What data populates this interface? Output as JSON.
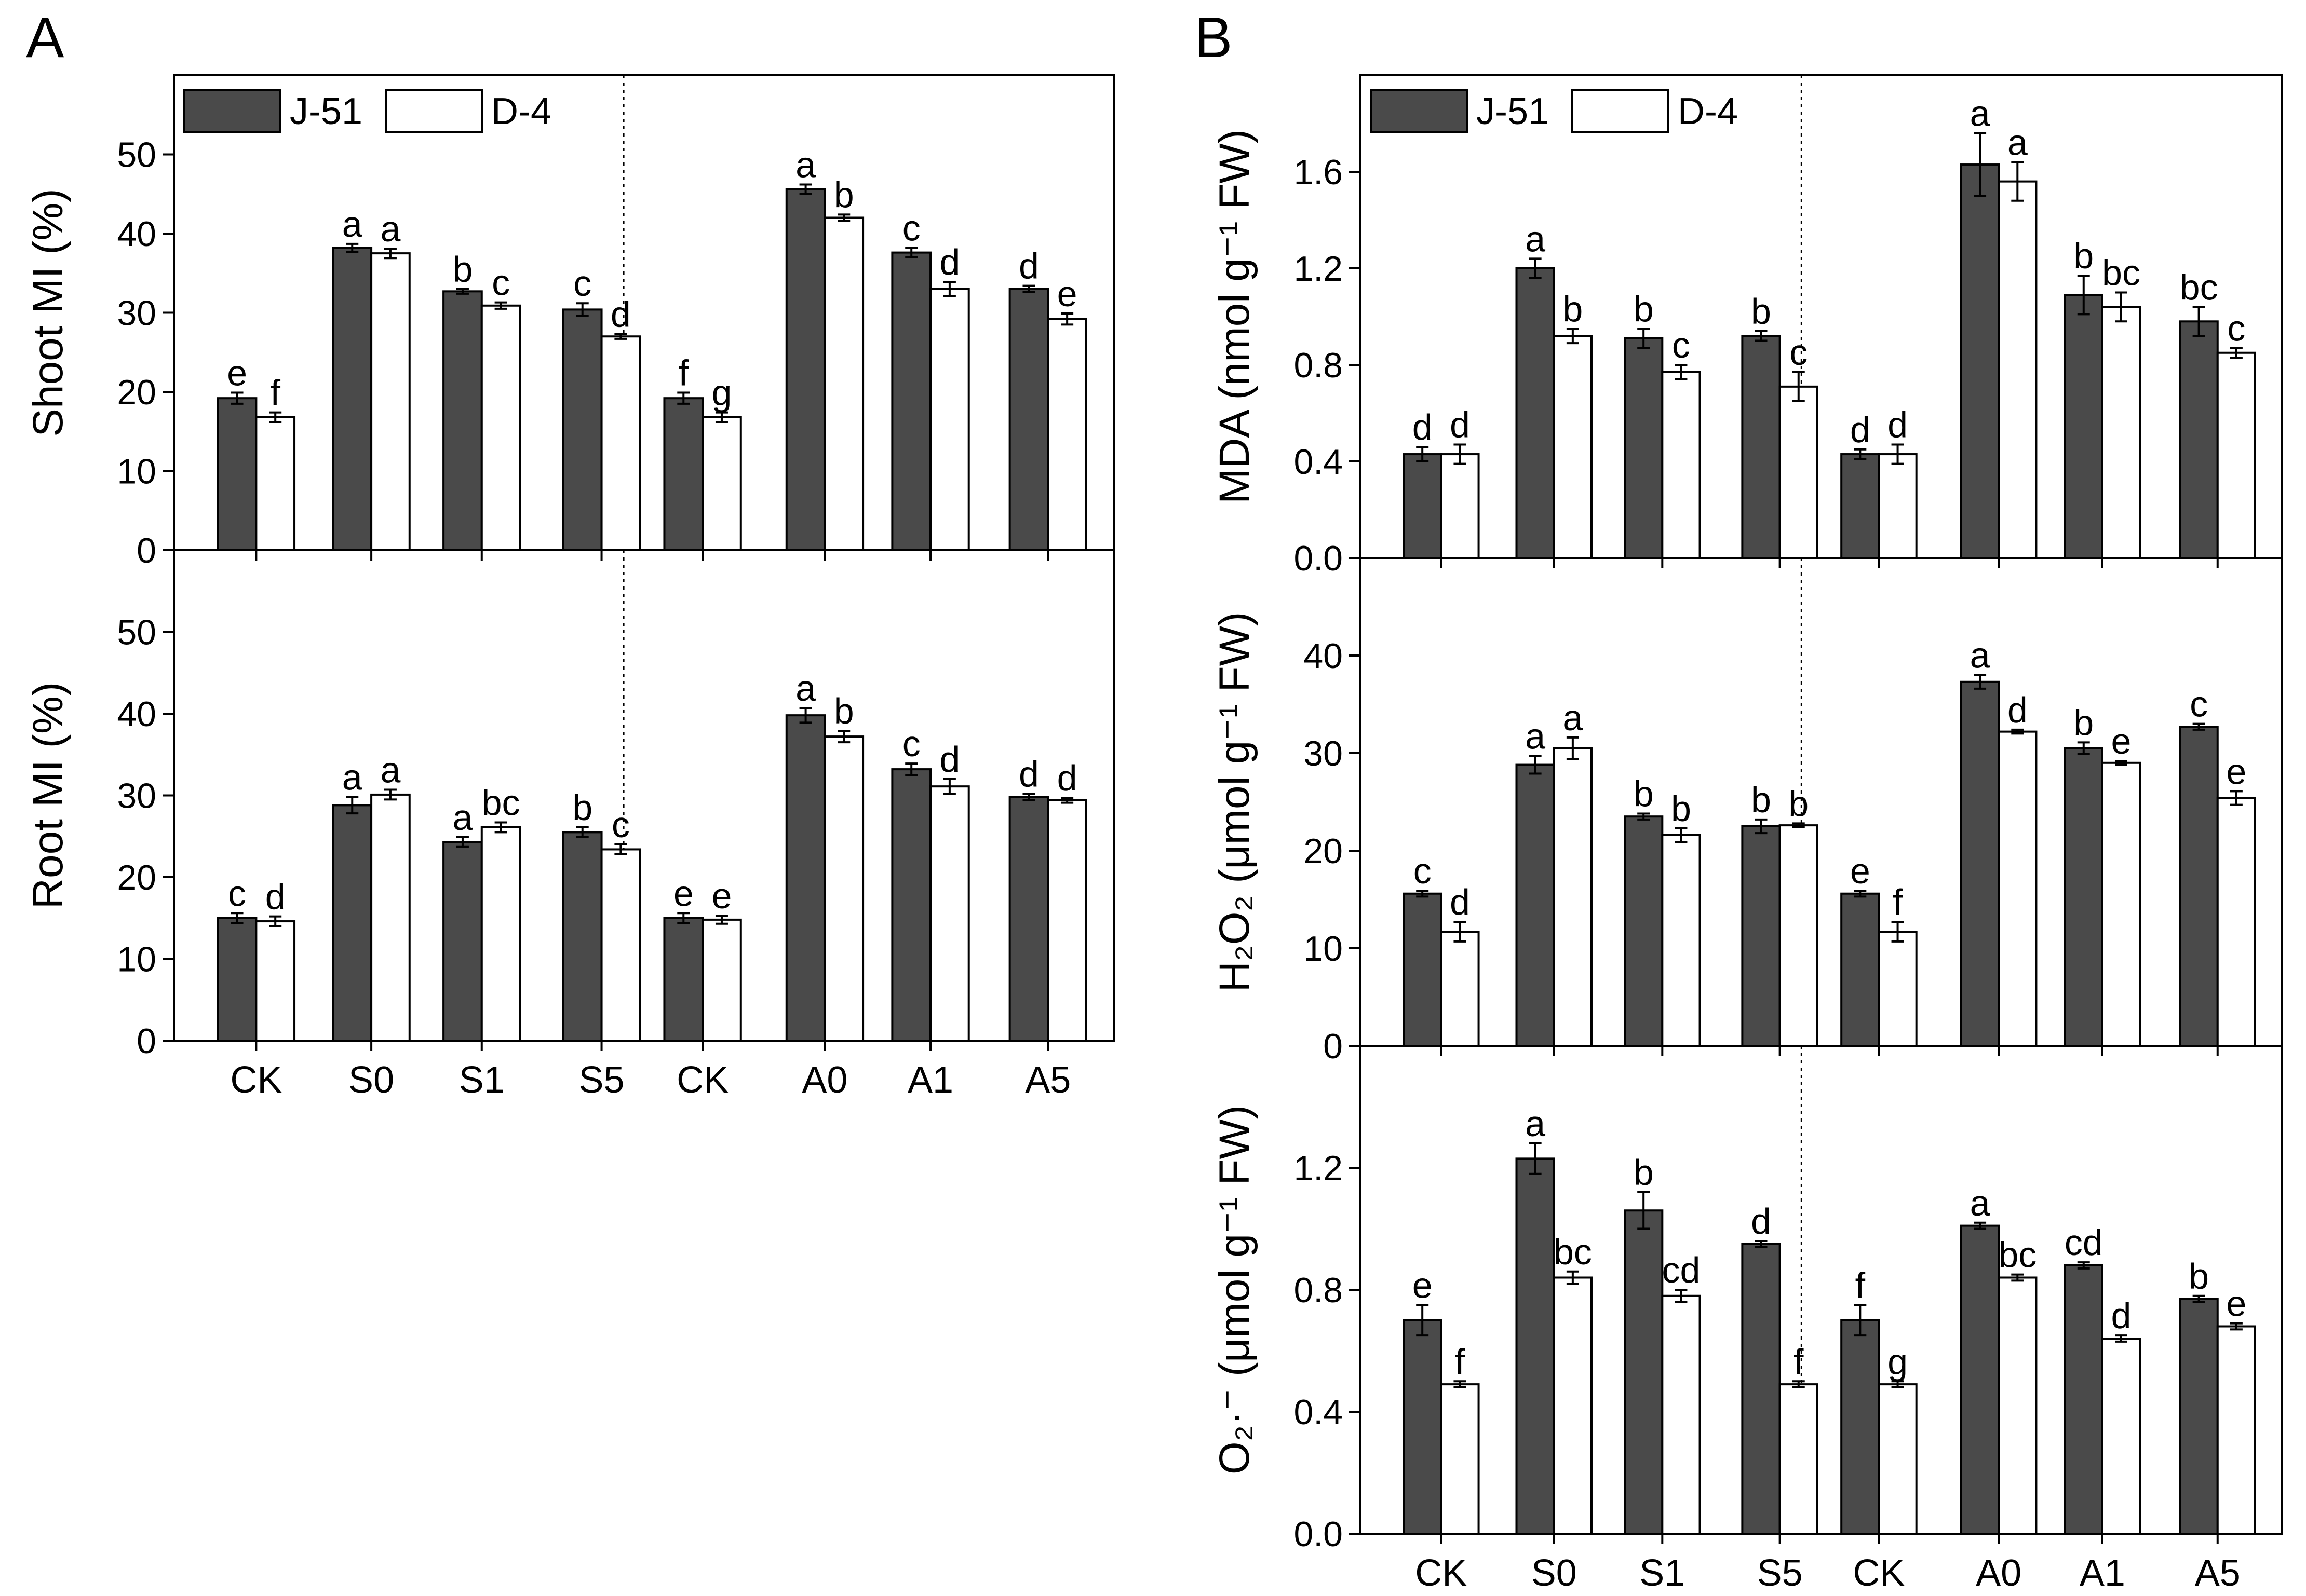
{
  "panel_labels": [
    "A",
    "B"
  ],
  "legend_labels": [
    "J-51",
    "D-4"
  ],
  "colors": {
    "j51": "#4a4a4a",
    "d4": "#ffffff",
    "stroke": "#000000"
  },
  "chart_data": [
    {
      "type": "bar",
      "categories": [
        "CK",
        "S0",
        "S1",
        "S5",
        "CK",
        "A0",
        "A1",
        "A5"
      ],
      "ylabel": "Shoot MI (%)",
      "ylim": [
        0,
        60
      ],
      "yticks": [
        0,
        10,
        20,
        30,
        40,
        50
      ],
      "ytick_labels": [
        "0",
        "10",
        "20",
        "30",
        "40",
        "50"
      ],
      "legend": "top-left",
      "series": [
        {
          "name": "J-51",
          "values": [
            19.2,
            38.2,
            32.7,
            30.4,
            19.2,
            45.6,
            37.6,
            33.0
          ],
          "errors": [
            0.7,
            0.5,
            0.3,
            0.8,
            0.7,
            0.6,
            0.6,
            0.4
          ],
          "letters": [
            "e",
            "a",
            "b",
            "c",
            "f",
            "a",
            "c",
            "d"
          ]
        },
        {
          "name": "D-4",
          "values": [
            16.8,
            37.5,
            30.9,
            27.0,
            16.8,
            42.0,
            33.0,
            29.2
          ],
          "errors": [
            0.6,
            0.6,
            0.4,
            0.3,
            0.6,
            0.4,
            0.9,
            0.7
          ],
          "letters": [
            "f",
            "a",
            "c",
            "d",
            "g",
            "b",
            "d",
            "e"
          ]
        }
      ]
    },
    {
      "type": "bar",
      "categories": [
        "CK",
        "S0",
        "S1",
        "S5",
        "CK",
        "A0",
        "A1",
        "A5"
      ],
      "ylabel": "Root MI (%)",
      "ylim": [
        0,
        60
      ],
      "yticks": [
        0,
        10,
        20,
        30,
        40,
        50
      ],
      "ytick_labels": [
        "0",
        "10",
        "20",
        "30",
        "40",
        "50"
      ],
      "series": [
        {
          "name": "J-51",
          "values": [
            15.0,
            28.8,
            24.3,
            25.5,
            15.0,
            39.8,
            33.2,
            29.8
          ],
          "errors": [
            0.6,
            1.0,
            0.6,
            0.6,
            0.6,
            0.9,
            0.7,
            0.4
          ],
          "letters": [
            "c",
            "a",
            "a",
            "b",
            "e",
            "a",
            "c",
            "d"
          ]
        },
        {
          "name": "D-4",
          "values": [
            14.6,
            30.1,
            26.1,
            23.4,
            14.8,
            37.2,
            31.1,
            29.4
          ],
          "errors": [
            0.6,
            0.6,
            0.6,
            0.6,
            0.5,
            0.7,
            0.9,
            0.3
          ],
          "letters": [
            "d",
            "a",
            "bc",
            "c",
            "e",
            "b",
            "d",
            "d"
          ]
        }
      ]
    },
    {
      "type": "bar",
      "categories": [
        "CK",
        "S0",
        "S1",
        "S5",
        "CK",
        "A0",
        "A1",
        "A5"
      ],
      "ylabel": "MDA (nmol g⁻¹ FW)",
      "ylim": [
        0,
        2.0
      ],
      "yticks": [
        0.0,
        0.4,
        0.8,
        1.2,
        1.6
      ],
      "ytick_labels": [
        "0.0",
        "0.4",
        "0.8",
        "1.2",
        "1.6"
      ],
      "legend": "top-left",
      "series": [
        {
          "name": "J-51",
          "values": [
            0.43,
            1.2,
            0.91,
            0.92,
            0.43,
            1.63,
            1.09,
            0.98
          ],
          "errors": [
            0.03,
            0.04,
            0.04,
            0.02,
            0.02,
            0.13,
            0.08,
            0.06
          ],
          "letters": [
            "d",
            "a",
            "b",
            "b",
            "d",
            "a",
            "b",
            "bc"
          ]
        },
        {
          "name": "D-4",
          "values": [
            0.43,
            0.92,
            0.77,
            0.71,
            0.43,
            1.56,
            1.04,
            0.85
          ],
          "errors": [
            0.04,
            0.03,
            0.03,
            0.06,
            0.04,
            0.08,
            0.06,
            0.02
          ],
          "letters": [
            "d",
            "b",
            "c",
            "c",
            "d",
            "a",
            "bc",
            "c"
          ]
        }
      ]
    },
    {
      "type": "bar",
      "categories": [
        "CK",
        "S0",
        "S1",
        "S5",
        "CK",
        "A0",
        "A1",
        "A5"
      ],
      "ylabel": "H₂O₂ (μmol g⁻¹ FW)",
      "ylim": [
        0,
        50
      ],
      "yticks": [
        0,
        10,
        20,
        30,
        40
      ],
      "ytick_labels": [
        "0",
        "10",
        "20",
        "30",
        "40"
      ],
      "series": [
        {
          "name": "J-51",
          "values": [
            15.6,
            28.8,
            23.5,
            22.5,
            15.6,
            37.3,
            30.5,
            32.7
          ],
          "errors": [
            0.3,
            0.9,
            0.3,
            0.7,
            0.3,
            0.7,
            0.6,
            0.3
          ],
          "letters": [
            "c",
            "a",
            "b",
            "b",
            "e",
            "a",
            "b",
            "c"
          ]
        },
        {
          "name": "D-4",
          "values": [
            11.7,
            30.5,
            21.6,
            22.6,
            11.7,
            32.2,
            29.0,
            25.4
          ],
          "errors": [
            1.0,
            1.1,
            0.7,
            0.2,
            1.0,
            0.2,
            0.2,
            0.7
          ],
          "letters": [
            "d",
            "a",
            "b",
            "b",
            "f",
            "d",
            "e",
            "e"
          ]
        }
      ]
    },
    {
      "type": "bar",
      "categories": [
        "CK",
        "S0",
        "S1",
        "S5",
        "CK",
        "A0",
        "A1",
        "A5"
      ],
      "ylabel": "O₂·⁻ (μmol g⁻¹ FW)",
      "ylim": [
        0,
        1.6
      ],
      "yticks": [
        0.0,
        0.4,
        0.8,
        1.2
      ],
      "ytick_labels": [
        "0.0",
        "0.4",
        "0.8",
        "1.2"
      ],
      "series": [
        {
          "name": "J-51",
          "values": [
            0.7,
            1.23,
            1.06,
            0.95,
            0.7,
            1.01,
            0.88,
            0.77
          ],
          "errors": [
            0.05,
            0.05,
            0.06,
            0.01,
            0.05,
            0.01,
            0.01,
            0.01
          ],
          "letters": [
            "e",
            "a",
            "b",
            "d",
            "f",
            "a",
            "cd",
            "b"
          ]
        },
        {
          "name": "D-4",
          "values": [
            0.49,
            0.84,
            0.78,
            0.49,
            0.49,
            0.84,
            0.64,
            0.68
          ],
          "errors": [
            0.01,
            0.02,
            0.02,
            0.01,
            0.01,
            0.01,
            0.01,
            0.01
          ],
          "letters": [
            "f",
            "bc",
            "cd",
            "f",
            "g",
            "bc",
            "d",
            "e"
          ]
        }
      ]
    }
  ]
}
